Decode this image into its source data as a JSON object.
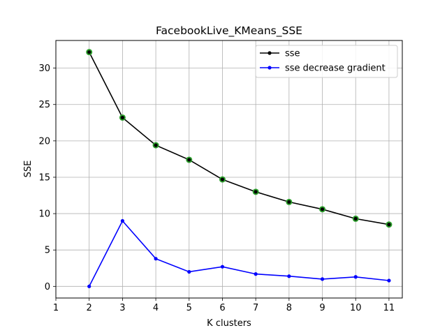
{
  "chart_data": {
    "type": "line",
    "title": "FacebookLive_KMeans_SSE",
    "xlabel": "K clusters",
    "ylabel": "SSE",
    "xlim": [
      1,
      11.4
    ],
    "ylim": [
      -1.6,
      33.8
    ],
    "xticks": [
      1,
      2,
      3,
      4,
      5,
      6,
      7,
      8,
      9,
      10,
      11
    ],
    "yticks": [
      0,
      5,
      10,
      15,
      20,
      25,
      30
    ],
    "grid": true,
    "legend_position": "top-right",
    "x": [
      2,
      3,
      4,
      5,
      6,
      7,
      8,
      9,
      10,
      11
    ],
    "series": [
      {
        "name": "sse",
        "color": "#000000",
        "marker_highlight_color": "#2ca02c",
        "values": [
          32.2,
          23.2,
          19.4,
          17.4,
          14.7,
          13.0,
          11.6,
          10.6,
          9.3,
          8.5
        ]
      },
      {
        "name": "sse decrease gradient",
        "color": "#0000ff",
        "values": [
          0.0,
          9.0,
          3.8,
          2.0,
          2.7,
          1.7,
          1.4,
          1.0,
          1.3,
          0.8
        ]
      }
    ]
  }
}
